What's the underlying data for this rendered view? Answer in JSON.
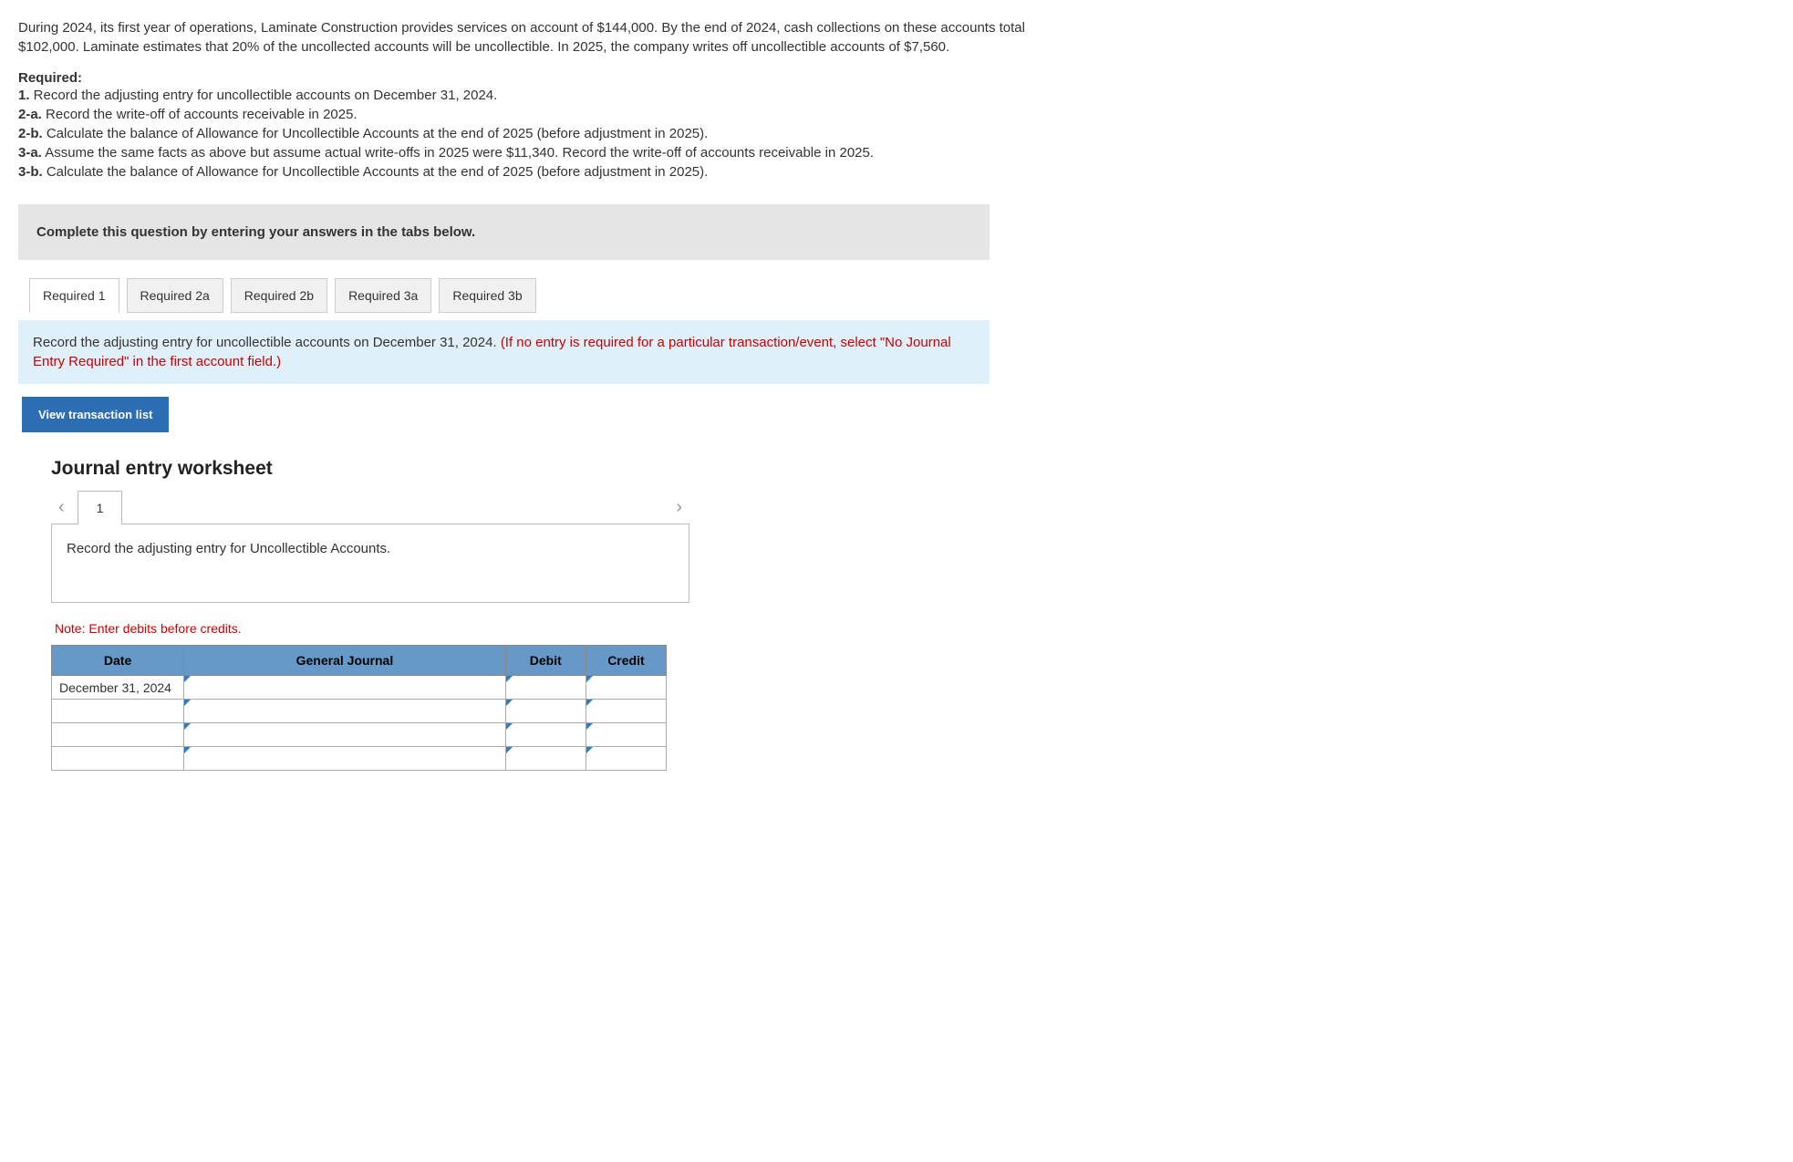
{
  "problem": {
    "intro": "During 2024, its first year of operations, Laminate Construction provides services on account of $144,000. By the end of 2024, cash collections on these accounts total $102,000. Laminate estimates that 20% of the uncollected accounts will be uncollectible. In 2025, the company writes off uncollectible accounts of $7,560.",
    "required_label": "Required:",
    "items": [
      {
        "num": "1.",
        "text": " Record the adjusting entry for uncollectible accounts on December 31, 2024."
      },
      {
        "num": "2-a.",
        "text": " Record the write-off of accounts receivable in 2025."
      },
      {
        "num": "2-b.",
        "text": " Calculate the balance of Allowance for Uncollectible Accounts at the end of 2025 (before adjustment in 2025)."
      },
      {
        "num": "3-a.",
        "text": " Assume the same facts as above but assume actual write-offs in 2025 were $11,340. Record the write-off of accounts receivable in 2025."
      },
      {
        "num": "3-b.",
        "text": " Calculate the balance of Allowance for Uncollectible Accounts at the end of 2025 (before adjustment in 2025)."
      }
    ]
  },
  "panel": {
    "instruction": "Complete this question by entering your answers in the tabs below.",
    "tabs": [
      "Required 1",
      "Required 2a",
      "Required 2b",
      "Required 3a",
      "Required 3b"
    ],
    "tab_content": {
      "black": "Record the adjusting entry for uncollectible accounts on December 31, 2024. ",
      "red": "(If no entry is required for a particular transaction/event, select \"No Journal Entry Required\" in the first account field.)"
    },
    "view_btn": "View transaction list"
  },
  "worksheet": {
    "title": "Journal entry worksheet",
    "page": "1",
    "entry_desc": "Record the adjusting entry for Uncollectible Accounts.",
    "note": "Note: Enter debits before credits.",
    "headers": {
      "date": "Date",
      "gj": "General Journal",
      "debit": "Debit",
      "credit": "Credit"
    },
    "row1_date": "December 31, 2024"
  }
}
